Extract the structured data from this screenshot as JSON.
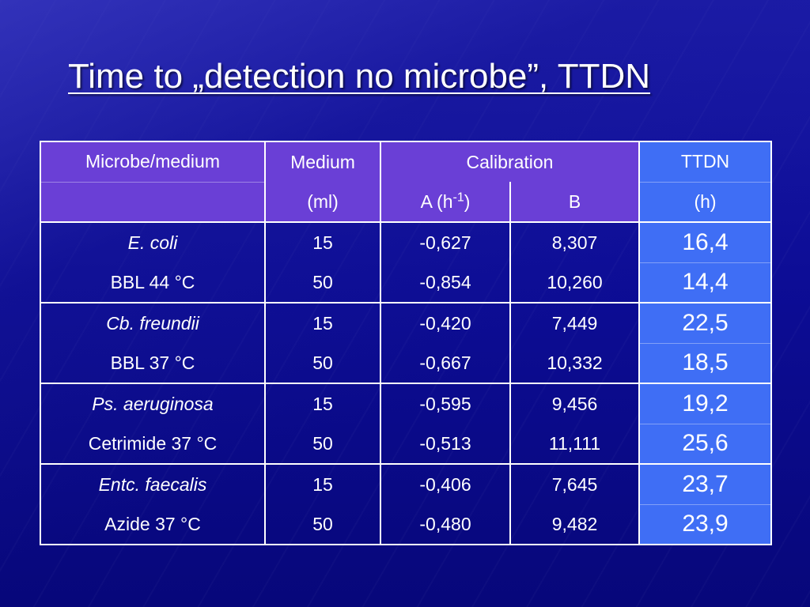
{
  "slide": {
    "title": "Time to „detection no microbe”, TTDN"
  },
  "table": {
    "header_row1": {
      "microbe": "Microbe/medium",
      "medium": "Medium",
      "calibration": "Calibration",
      "ttdn": "TTDN"
    },
    "header_row2": {
      "medium_unit": "(ml)",
      "a_label": "A (h",
      "a_sup": "-1",
      "a_close": ")",
      "b_label": "B",
      "ttdn_unit": "(h)"
    },
    "groups": [
      {
        "organism": "E. coli",
        "medium": "BBL 44 °C",
        "rows": [
          {
            "volume": "15",
            "a": "-0,627",
            "b": "8,307",
            "ttdn": "16,4"
          },
          {
            "volume": "50",
            "a": "-0,854",
            "b": "10,260",
            "ttdn": "14,4"
          }
        ]
      },
      {
        "organism": "Cb. freundii",
        "medium": "BBL  37 °C",
        "rows": [
          {
            "volume": "15",
            "a": "-0,420",
            "b": "7,449",
            "ttdn": "22,5"
          },
          {
            "volume": "50",
            "a": "-0,667",
            "b": "10,332",
            "ttdn": "18,5"
          }
        ]
      },
      {
        "organism": "Ps. aeruginosa",
        "medium": "Cetrimide 37 °C",
        "rows": [
          {
            "volume": "15",
            "a": "-0,595",
            "b": "9,456",
            "ttdn": "19,2"
          },
          {
            "volume": "50",
            "a": "-0,513",
            "b": "11,111",
            "ttdn": "25,6"
          }
        ]
      },
      {
        "organism": "Entc. faecalis",
        "medium": "Azide 37 °C",
        "rows": [
          {
            "volume": "15",
            "a": "-0,406",
            "b": "7,645",
            "ttdn": "23,7"
          },
          {
            "volume": "50",
            "a": "-0,480",
            "b": "9,482",
            "ttdn": "23,9"
          }
        ]
      }
    ]
  },
  "colors": {
    "background": "#0a0a8c",
    "header_fill": "#6a3fd6",
    "ttdn_fill": "#3f6ef5",
    "text": "#ffffff"
  }
}
